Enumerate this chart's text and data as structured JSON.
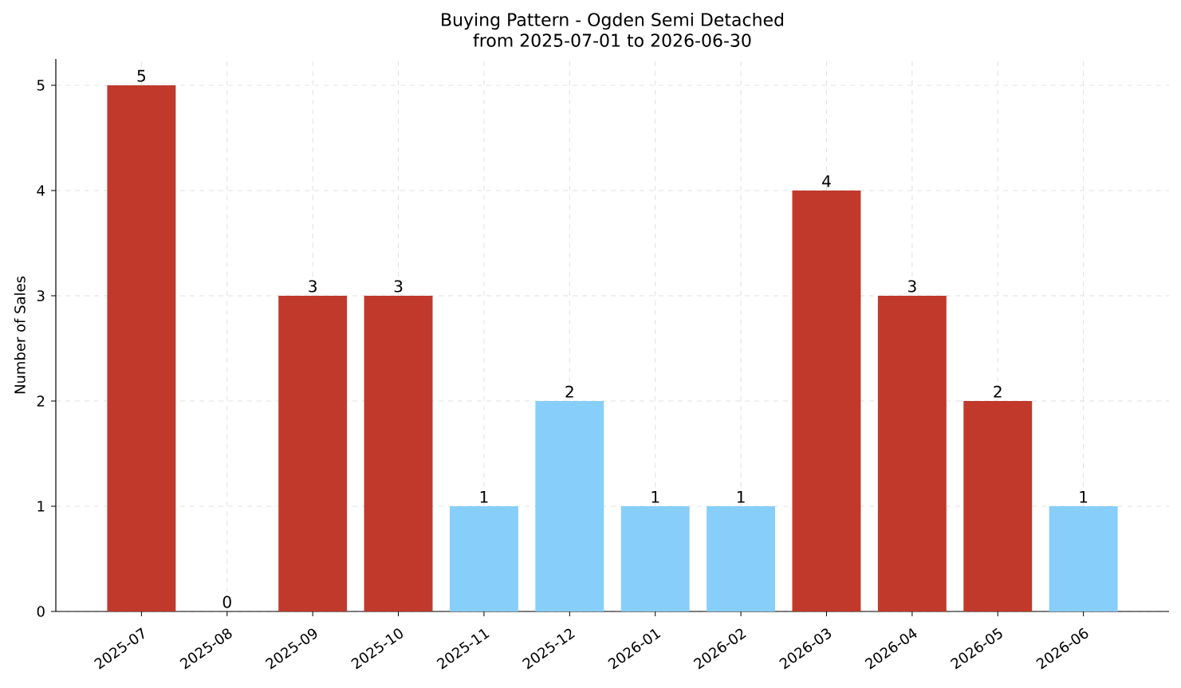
{
  "chart_data": {
    "type": "bar",
    "title": "Buying Pattern - Ogden Semi Detached\nfrom 2025-07-01 to 2026-06-30",
    "ylabel": "Number of Sales",
    "categories": [
      "2025-07",
      "2025-08",
      "2025-09",
      "2025-10",
      "2025-11",
      "2025-12",
      "2026-01",
      "2026-02",
      "2026-03",
      "2026-04",
      "2026-05",
      "2026-06"
    ],
    "values": [
      5,
      0,
      3,
      3,
      1,
      2,
      1,
      1,
      4,
      3,
      2,
      1
    ],
    "colors": [
      "#c0392b",
      "#c0392b",
      "#c0392b",
      "#c0392b",
      "#87cefa",
      "#87cefa",
      "#87cefa",
      "#87cefa",
      "#c0392b",
      "#c0392b",
      "#c0392b",
      "#87cefa"
    ],
    "ylim": [
      0,
      5.25
    ],
    "yticks": [
      0,
      1,
      2,
      3,
      4,
      5
    ],
    "grid": true,
    "data_labels": true
  }
}
